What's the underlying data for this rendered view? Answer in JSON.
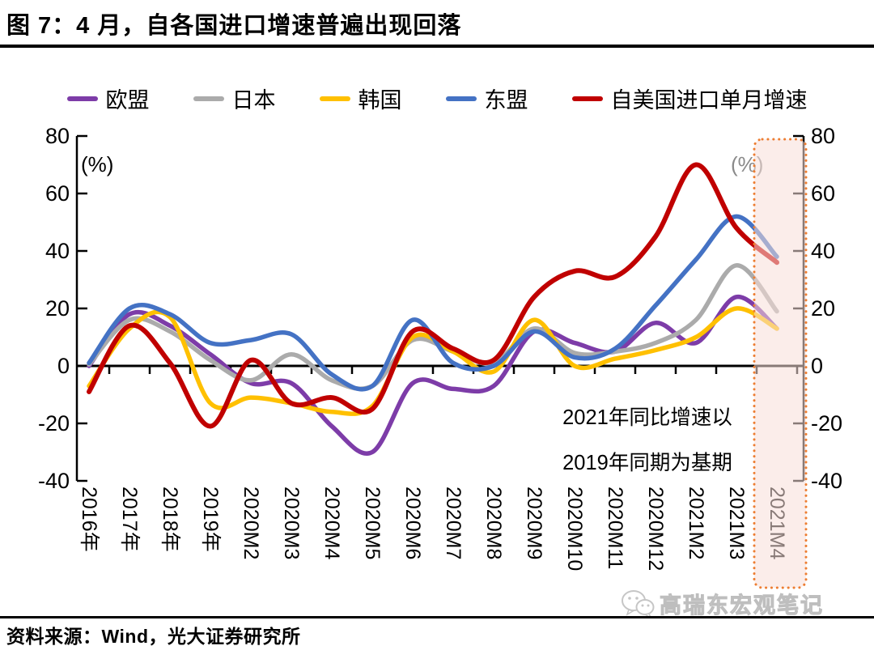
{
  "title": "图 7：4 月，自各国进口增速普遍出现回落",
  "source": "资料来源：Wind，光大证券研究所",
  "watermark": {
    "icon": "wechat-icon",
    "text": "高瑞东宏观笔记"
  },
  "chart_data": {
    "type": "line",
    "title": "",
    "unit_label_left": "(%)",
    "unit_label_right": "(%)",
    "xlabel": "",
    "ylabel": "(%)",
    "ylim": [
      -40,
      80
    ],
    "yticks": [
      80,
      60,
      40,
      20,
      0,
      -20,
      -40
    ],
    "grid": false,
    "legend_position": "top",
    "dual_axis": true,
    "categories": [
      "2016年",
      "2017年",
      "2018年",
      "2019年",
      "2020M2",
      "2020M3",
      "2020M4",
      "2020M5",
      "2020M6",
      "2020M7",
      "2020M8",
      "2020M9",
      "2020M10",
      "2020M11",
      "2020M12",
      "2021M2",
      "2021M3",
      "2021M4"
    ],
    "series": [
      {
        "name": "欧盟",
        "color": "#7D3CA8",
        "values": [
          0,
          18,
          14,
          4,
          -6,
          -6,
          -21,
          -30,
          -6,
          -8,
          -7,
          12,
          8,
          5,
          15,
          8,
          24,
          13
        ]
      },
      {
        "name": "日本",
        "color": "#ABABAB",
        "values": [
          0.5,
          16,
          12,
          2,
          -5,
          4,
          -5,
          -7,
          9,
          5,
          1,
          13,
          4.5,
          5,
          8,
          16,
          35,
          19
        ]
      },
      {
        "name": "韩国",
        "color": "#FFC000",
        "values": [
          -7,
          13,
          17,
          -13,
          -11,
          -13,
          -16,
          -14,
          10,
          5,
          -2,
          16,
          0,
          2.5,
          5.5,
          10,
          20,
          13
        ]
      },
      {
        "name": "东盟",
        "color": "#4472C4",
        "values": [
          1,
          20,
          18,
          8,
          9,
          11,
          -3,
          -7,
          16,
          1,
          0,
          12,
          3,
          6,
          21,
          37,
          52,
          38
        ]
      },
      {
        "name": "自美国进口单月增速",
        "color": "#C00000",
        "values": [
          -9,
          14,
          1,
          -21,
          2,
          -13,
          -11,
          -15,
          12,
          6,
          2,
          24,
          33,
          31,
          45,
          70,
          48,
          36
        ]
      }
    ],
    "annotation": {
      "lines": [
        "2021年同比增速以",
        "2019年同期为基期"
      ]
    },
    "highlight": {
      "label": "2021M4",
      "fill": "#F8DED8",
      "border_color": "#ED7D31",
      "border_style": "dotted"
    }
  }
}
